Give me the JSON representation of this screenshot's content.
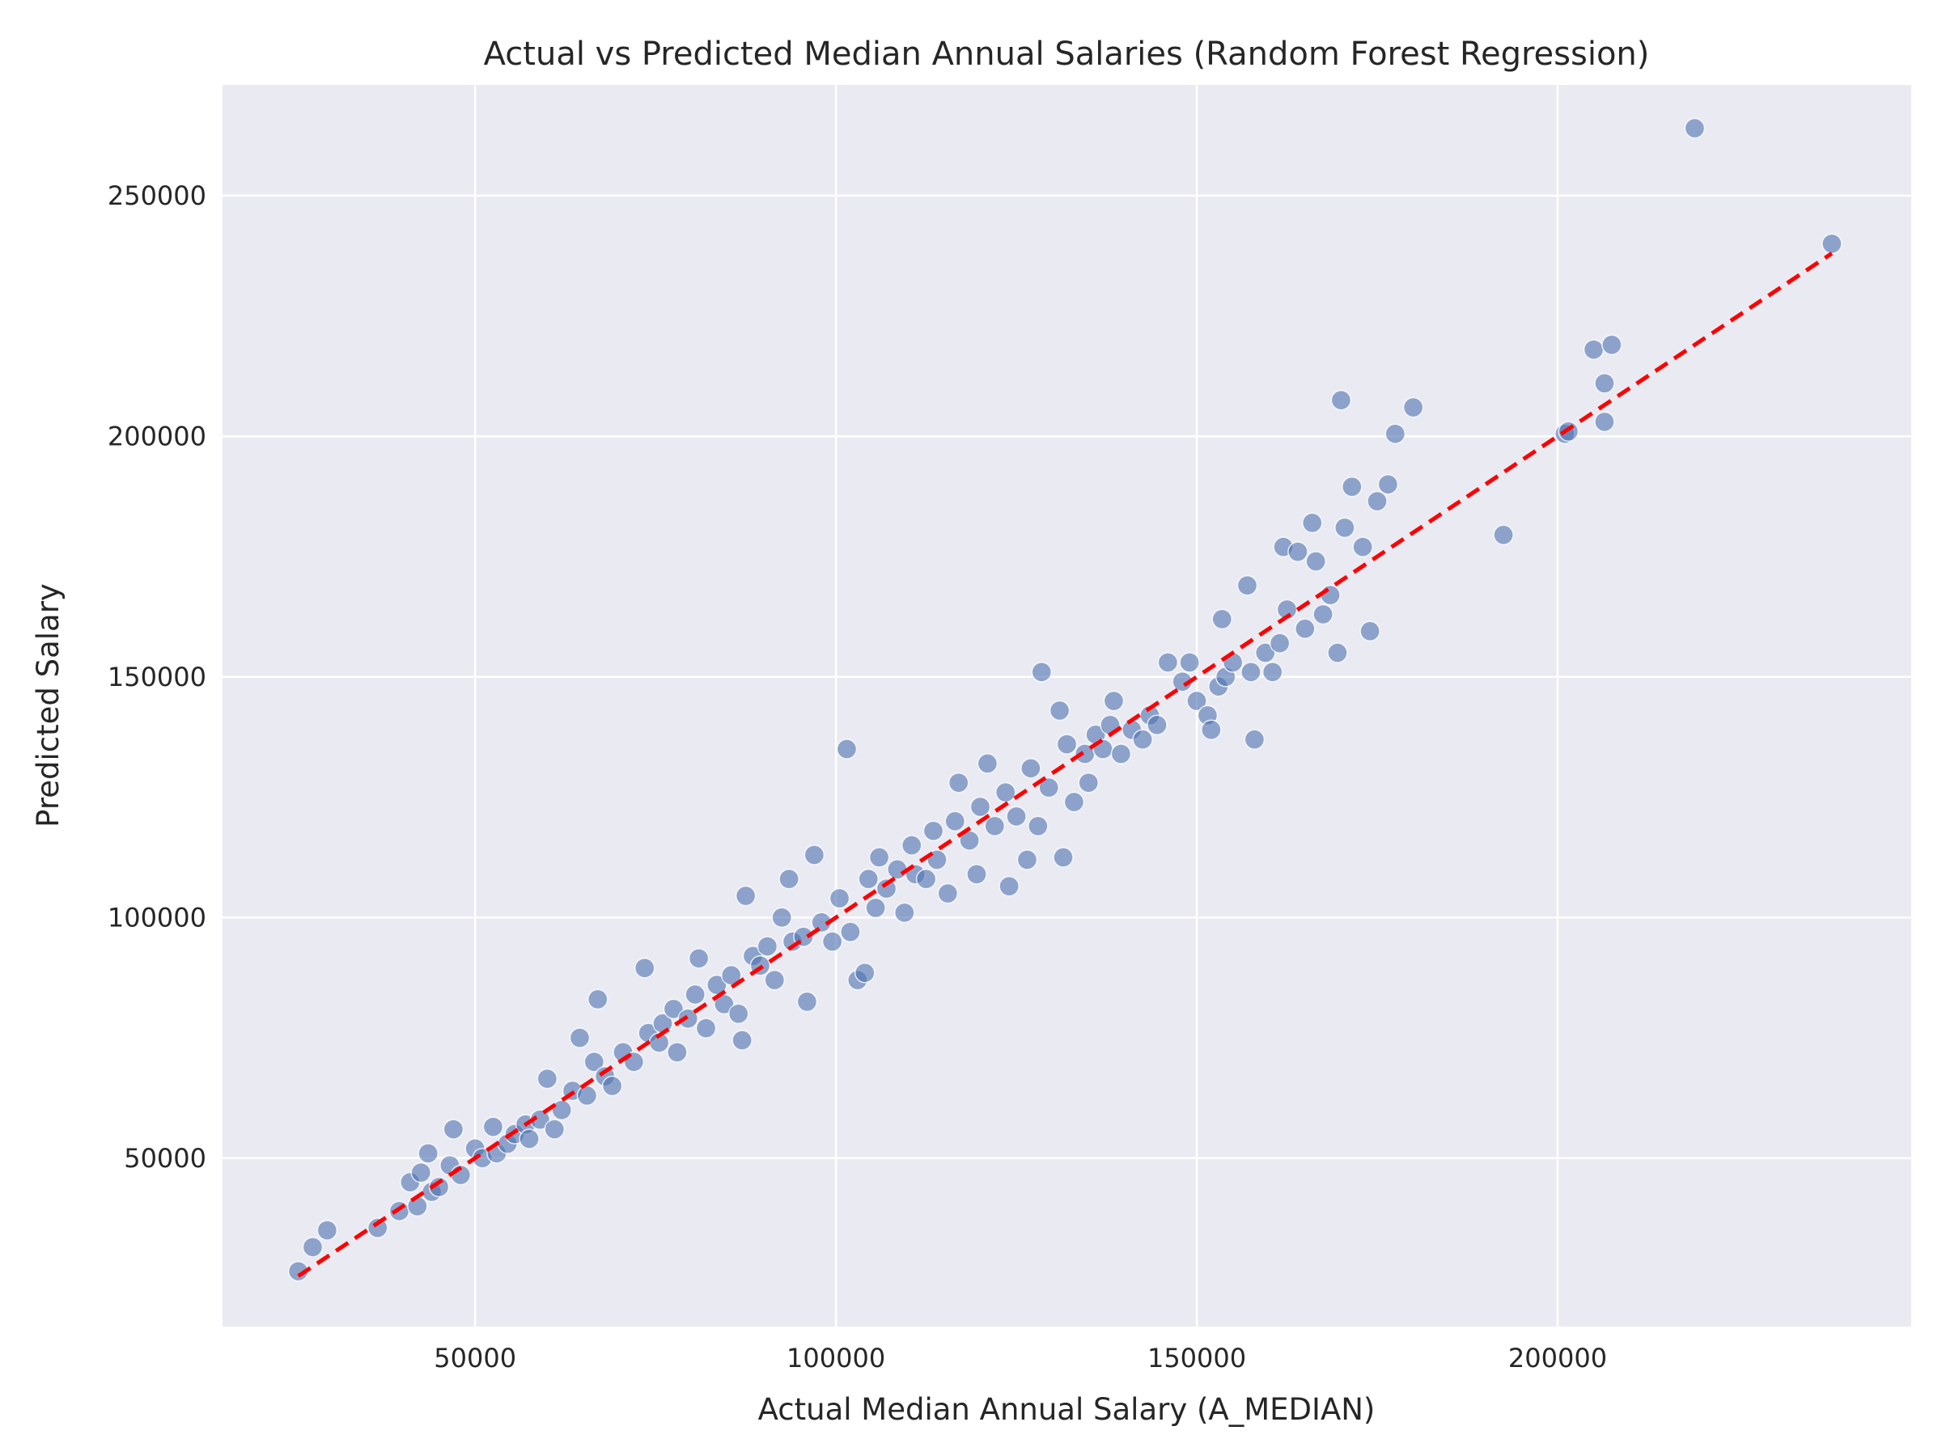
{
  "chart_data": {
    "type": "scatter",
    "title": "Actual vs Predicted Median Annual Salaries (Random Forest Regression)",
    "xlabel": "Actual Median Annual Salary (A_MEDIAN)",
    "ylabel": "Predicted Salary",
    "xlim": [
      15000,
      249000
    ],
    "ylim": [
      15000,
      273000
    ],
    "x_ticks": [
      50000,
      100000,
      150000,
      200000
    ],
    "y_ticks": [
      50000,
      100000,
      150000,
      200000,
      250000
    ],
    "grid": true,
    "legend": "none",
    "colors": {
      "background": "#eaeaf2",
      "grid": "#ffffff",
      "points": "#4c72b0",
      "reference_line": "#ff0000"
    },
    "reference_line": {
      "label": "",
      "style": "dashed",
      "from": [
        25500,
        25500
      ],
      "to": [
        238000,
        238000
      ]
    },
    "series": [
      {
        "name": "",
        "points": [
          [
            25500,
            26500
          ],
          [
            27500,
            31500
          ],
          [
            29500,
            35000
          ],
          [
            36500,
            35500
          ],
          [
            39500,
            39000
          ],
          [
            41000,
            45000
          ],
          [
            42000,
            40000
          ],
          [
            43500,
            51000
          ],
          [
            42500,
            47000
          ],
          [
            44000,
            43000
          ],
          [
            45000,
            44000
          ],
          [
            46500,
            48500
          ],
          [
            47000,
            56000
          ],
          [
            48000,
            46500
          ],
          [
            50000,
            52000
          ],
          [
            51000,
            50000
          ],
          [
            52500,
            56500
          ],
          [
            53000,
            51000
          ],
          [
            54500,
            53000
          ],
          [
            55500,
            55000
          ],
          [
            57000,
            57000
          ],
          [
            57500,
            54000
          ],
          [
            59000,
            58000
          ],
          [
            60000,
            66500
          ],
          [
            61000,
            56000
          ],
          [
            62000,
            60000
          ],
          [
            63500,
            64000
          ],
          [
            64500,
            75000
          ],
          [
            65500,
            63000
          ],
          [
            66500,
            70000
          ],
          [
            67000,
            83000
          ],
          [
            68000,
            67000
          ],
          [
            69000,
            65000
          ],
          [
            70500,
            72000
          ],
          [
            72000,
            70000
          ],
          [
            73500,
            89500
          ],
          [
            74000,
            76000
          ],
          [
            75500,
            74000
          ],
          [
            76000,
            78000
          ],
          [
            77500,
            81000
          ],
          [
            78000,
            72000
          ],
          [
            79500,
            79000
          ],
          [
            80500,
            84000
          ],
          [
            81000,
            91500
          ],
          [
            82000,
            77000
          ],
          [
            83500,
            86000
          ],
          [
            84500,
            82000
          ],
          [
            85500,
            88000
          ],
          [
            86500,
            80000
          ],
          [
            87500,
            104500
          ],
          [
            87000,
            74500
          ],
          [
            88500,
            92000
          ],
          [
            89500,
            90000
          ],
          [
            90500,
            94000
          ],
          [
            91500,
            87000
          ],
          [
            92500,
            100000
          ],
          [
            93500,
            108000
          ],
          [
            94000,
            95000
          ],
          [
            95500,
            96000
          ],
          [
            96000,
            82500
          ],
          [
            97000,
            113000
          ],
          [
            98000,
            99000
          ],
          [
            99500,
            95000
          ],
          [
            100500,
            104000
          ],
          [
            101500,
            135000
          ],
          [
            102000,
            97000
          ],
          [
            103000,
            87000
          ],
          [
            104000,
            88500
          ],
          [
            104500,
            108000
          ],
          [
            105500,
            102000
          ],
          [
            106000,
            112500
          ],
          [
            107000,
            106000
          ],
          [
            108500,
            110000
          ],
          [
            109500,
            101000
          ],
          [
            110500,
            115000
          ],
          [
            111000,
            109000
          ],
          [
            112500,
            108000
          ],
          [
            113500,
            118000
          ],
          [
            114000,
            112000
          ],
          [
            115500,
            105000
          ],
          [
            116500,
            120000
          ],
          [
            117000,
            128000
          ],
          [
            118500,
            116000
          ],
          [
            119500,
            109000
          ],
          [
            120000,
            123000
          ],
          [
            121000,
            132000
          ],
          [
            122000,
            119000
          ],
          [
            123500,
            126000
          ],
          [
            124000,
            106500
          ],
          [
            125000,
            121000
          ],
          [
            126500,
            112000
          ],
          [
            127000,
            131000
          ],
          [
            128000,
            119000
          ],
          [
            128500,
            151000
          ],
          [
            129500,
            127000
          ],
          [
            131000,
            143000
          ],
          [
            131500,
            112500
          ],
          [
            132000,
            136000
          ],
          [
            133000,
            124000
          ],
          [
            134500,
            134000
          ],
          [
            135000,
            128000
          ],
          [
            136000,
            138000
          ],
          [
            137000,
            135000
          ],
          [
            138000,
            140000
          ],
          [
            138500,
            145000
          ],
          [
            139500,
            134000
          ],
          [
            141000,
            139000
          ],
          [
            142500,
            137000
          ],
          [
            143500,
            142000
          ],
          [
            144500,
            140000
          ],
          [
            146000,
            153000
          ],
          [
            148000,
            149000
          ],
          [
            149000,
            153000
          ],
          [
            150000,
            145000
          ],
          [
            151500,
            142000
          ],
          [
            152000,
            139000
          ],
          [
            153000,
            148000
          ],
          [
            153500,
            162000
          ],
          [
            154000,
            150000
          ],
          [
            155000,
            153000
          ],
          [
            157000,
            169000
          ],
          [
            157500,
            151000
          ],
          [
            158000,
            137000
          ],
          [
            159500,
            155000
          ],
          [
            160500,
            151000
          ],
          [
            161500,
            157000
          ],
          [
            162000,
            177000
          ],
          [
            162500,
            164000
          ],
          [
            164000,
            176000
          ],
          [
            165000,
            160000
          ],
          [
            166000,
            182000
          ],
          [
            166500,
            174000
          ],
          [
            167500,
            163000
          ],
          [
            168500,
            167000
          ],
          [
            169500,
            155000
          ],
          [
            170000,
            207500
          ],
          [
            170500,
            181000
          ],
          [
            171500,
            189500
          ],
          [
            173000,
            177000
          ],
          [
            174000,
            159500
          ],
          [
            175000,
            186500
          ],
          [
            176500,
            190000
          ],
          [
            177500,
            200500
          ],
          [
            180000,
            206000
          ],
          [
            192500,
            179500
          ],
          [
            201000,
            200500
          ],
          [
            201500,
            201000
          ],
          [
            205000,
            218000
          ],
          [
            206500,
            211000
          ],
          [
            206500,
            203000
          ],
          [
            207500,
            219000
          ],
          [
            219000,
            264000
          ],
          [
            238000,
            240000
          ]
        ]
      }
    ]
  }
}
